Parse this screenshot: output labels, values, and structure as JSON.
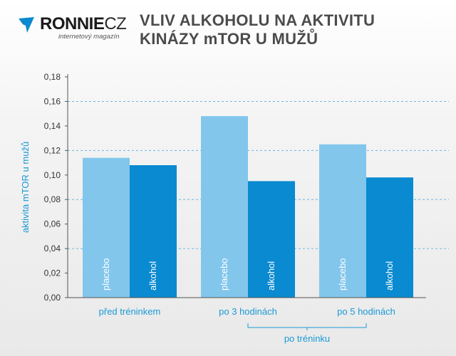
{
  "brand": {
    "name_bold": "RONNIE",
    "name_light": "CZ",
    "tagline": "internetový magazín"
  },
  "title_lines": [
    "VLIV ALKOHOLU NA AKTIVITU",
    "KINÁZY mTOR U MUŽŮ"
  ],
  "colors": {
    "placebo": "#82c6ec",
    "alkohol": "#0a8ad0",
    "accent": "#1a9ad6",
    "grid": "#6ab8e0"
  },
  "chart_data": {
    "type": "bar",
    "categories": [
      "před tréninkem",
      "po 3 hodinách",
      "po 5 hodinách"
    ],
    "series": [
      {
        "name": "placebo",
        "values": [
          0.114,
          0.148,
          0.125
        ]
      },
      {
        "name": "alkohol",
        "values": [
          0.108,
          0.095,
          0.098
        ]
      }
    ],
    "ylabel": "aktivita mTOR u mužů",
    "ylim": [
      0,
      0.18
    ],
    "yticks": [
      "0,00",
      "0,02",
      "0,04",
      "0,06",
      "0,08",
      "0,10",
      "0,12",
      "0,14",
      "0,16",
      "0,18"
    ],
    "group_bracket": {
      "label": "po tréninku",
      "spans": [
        "po 3 hodinách",
        "po 5 hodinách"
      ]
    },
    "grid": "dashed at 0,04 0,08 0,12 0,16",
    "legend": "labels inside bars"
  }
}
